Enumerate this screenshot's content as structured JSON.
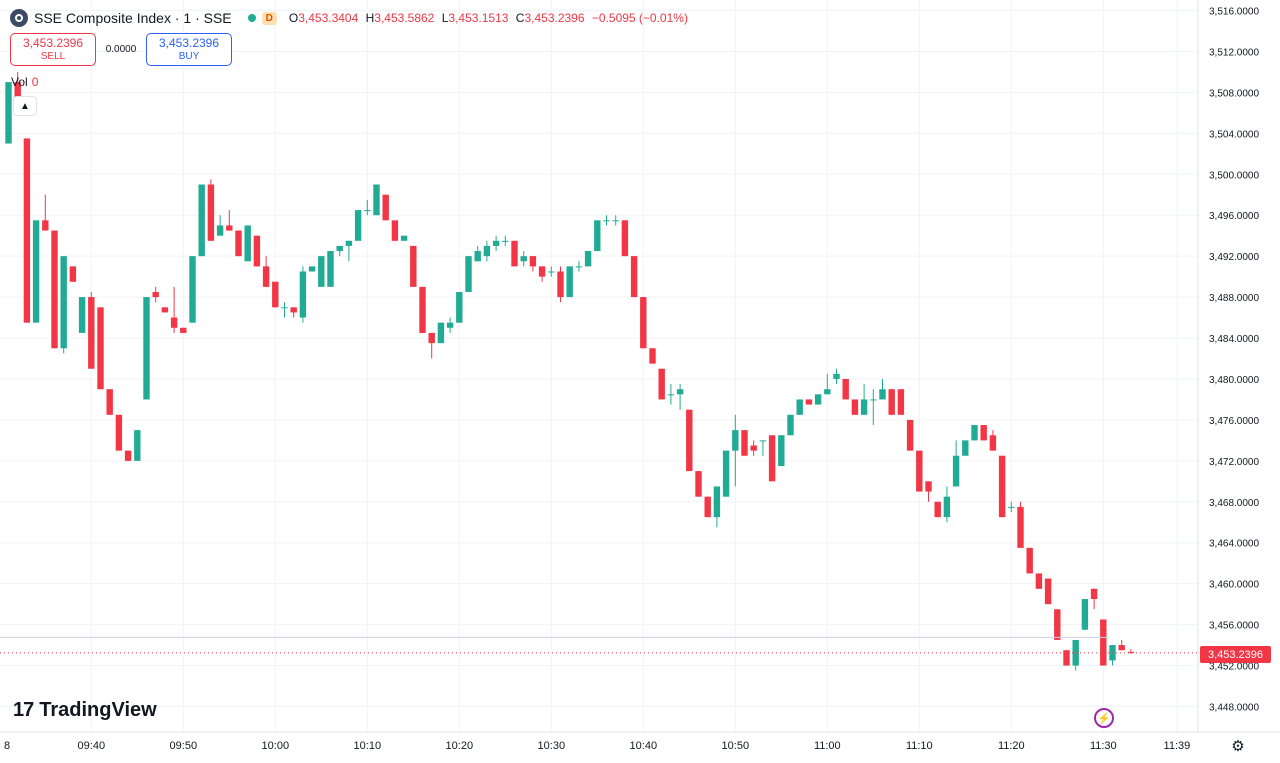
{
  "header": {
    "title": "SSE Composite Index · 1 · SSE",
    "badge": "D",
    "ohlc": {
      "o_label": "O",
      "o": "3,453.3404",
      "h_label": "H",
      "h": "3,453.5862",
      "l_label": "L",
      "l": "3,453.1513",
      "c_label": "C",
      "c": "3,453.2396",
      "change": "−0.5095 (−0.01%)"
    }
  },
  "trade": {
    "sell_price": "3,453.2396",
    "sell_label": "SELL",
    "spread": "0.0000",
    "buy_price": "3,453.2396",
    "buy_label": "BUY"
  },
  "volume": {
    "label": "Vol",
    "value": "0"
  },
  "brand": {
    "name": "TradingView",
    "mark": "17"
  },
  "colors": {
    "up": "#22ab94",
    "down": "#f23645",
    "grid": "#f0f3fa",
    "price_line": "#f23645",
    "accent": "#2962ff"
  },
  "icons": {
    "symbol": "sse-logo-icon",
    "collapse": "chevron-up-icon",
    "flash": "lightning-icon",
    "settings": "gear-icon"
  },
  "price_axis": {
    "ticks": [
      "3,516.0000",
      "3,512.0000",
      "3,508.0000",
      "3,504.0000",
      "3,500.0000",
      "3,496.0000",
      "3,492.0000",
      "3,488.0000",
      "3,484.0000",
      "3,480.0000",
      "3,476.0000",
      "3,472.0000",
      "3,468.0000",
      "3,464.0000",
      "3,460.0000",
      "3,456.0000",
      "3,452.0000",
      "3,448.0000"
    ],
    "current_price_label": "3,453.2396"
  },
  "chart_data": {
    "type": "candlestick",
    "title": "SSE Composite Index · 1 · SSE",
    "interval": "1 minute",
    "ylim": [
      3446.5,
      3517
    ],
    "grid": true,
    "x_tick_labels": [
      "8",
      "09:40",
      "09:50",
      "10:00",
      "10:10",
      "10:20",
      "10:30",
      "10:40",
      "10:50",
      "11:00",
      "11:10",
      "11:20",
      "11:30",
      "11:39"
    ],
    "x_tick_index": [
      -0.5,
      9,
      19,
      29,
      39,
      49,
      59,
      69,
      79,
      89,
      99,
      109,
      119,
      127
    ],
    "current_price": 3453.2396,
    "candles": [
      [
        3503,
        3509,
        3503,
        3509
      ],
      [
        3509,
        3510,
        3506,
        3506.5
      ],
      [
        3503.5,
        3503.5,
        3485.5,
        3485.5
      ],
      [
        3485.5,
        3495.5,
        3485.5,
        3495.5
      ],
      [
        3495.5,
        3498,
        3494.5,
        3494.5
      ],
      [
        3494.5,
        3494.5,
        3483,
        3483
      ],
      [
        3483,
        3492,
        3482.5,
        3492
      ],
      [
        3491,
        3491,
        3489.5,
        3489.5
      ],
      [
        3484.5,
        3488,
        3484.5,
        3488
      ],
      [
        3488,
        3488.5,
        3481,
        3481
      ],
      [
        3487,
        3487,
        3479,
        3479
      ],
      [
        3479,
        3479,
        3476.5,
        3476.5
      ],
      [
        3476.5,
        3476.5,
        3473,
        3473
      ],
      [
        3473,
        3473,
        3472,
        3472
      ],
      [
        3472,
        3475,
        3472,
        3475
      ],
      [
        3478,
        3488,
        3478,
        3488
      ],
      [
        3488.5,
        3489,
        3487.5,
        3488
      ],
      [
        3487,
        3487,
        3486.5,
        3486.5
      ],
      [
        3486,
        3489,
        3484.5,
        3485
      ],
      [
        3485,
        3485,
        3484.5,
        3484.5
      ],
      [
        3485.5,
        3492,
        3485.5,
        3492
      ],
      [
        3492,
        3499,
        3492,
        3499
      ],
      [
        3499,
        3499.5,
        3493.5,
        3493.5
      ],
      [
        3494,
        3496,
        3494,
        3495
      ],
      [
        3495,
        3496.5,
        3494.5,
        3494.5
      ],
      [
        3494.5,
        3494.5,
        3492,
        3492
      ],
      [
        3491.5,
        3495,
        3491.5,
        3495
      ],
      [
        3494,
        3494,
        3491,
        3491
      ],
      [
        3491,
        3492,
        3489,
        3489
      ],
      [
        3489.5,
        3489.5,
        3487,
        3487
      ],
      [
        3487,
        3487.5,
        3486,
        3487
      ],
      [
        3487,
        3487,
        3486,
        3486.5
      ],
      [
        3486,
        3491,
        3485.5,
        3490.5
      ],
      [
        3490.5,
        3491,
        3490.5,
        3491
      ],
      [
        3489,
        3492,
        3489,
        3492
      ],
      [
        3489,
        3492.5,
        3489,
        3492.5
      ],
      [
        3492.5,
        3493,
        3492,
        3493
      ],
      [
        3493,
        3493.5,
        3491.5,
        3493.5
      ],
      [
        3493.5,
        3496.5,
        3493.5,
        3496.5
      ],
      [
        3496.5,
        3497.5,
        3496,
        3496.5
      ],
      [
        3496,
        3499,
        3496,
        3499
      ],
      [
        3498,
        3498,
        3495.5,
        3495.5
      ],
      [
        3495.5,
        3495.5,
        3493.5,
        3493.5
      ],
      [
        3493.5,
        3494,
        3493.5,
        3494
      ],
      [
        3493,
        3493,
        3489,
        3489
      ],
      [
        3489,
        3489,
        3484.5,
        3484.5
      ],
      [
        3484.5,
        3484.5,
        3482,
        3483.5
      ],
      [
        3483.5,
        3485.5,
        3483.5,
        3485.5
      ],
      [
        3485,
        3486,
        3484.5,
        3485.5
      ],
      [
        3485.5,
        3488.5,
        3485.5,
        3488.5
      ],
      [
        3488.5,
        3492,
        3488.5,
        3492
      ],
      [
        3491.5,
        3493,
        3491.5,
        3492.5
      ],
      [
        3492,
        3493.5,
        3491.5,
        3493
      ],
      [
        3493,
        3494,
        3492.5,
        3493.5
      ],
      [
        3493.5,
        3494,
        3493,
        3493.5
      ],
      [
        3493.5,
        3493.5,
        3491,
        3491
      ],
      [
        3491.5,
        3492.5,
        3491,
        3492
      ],
      [
        3492,
        3492,
        3490.5,
        3491
      ],
      [
        3491,
        3491,
        3489.5,
        3490
      ],
      [
        3490.5,
        3491,
        3490,
        3490.5
      ],
      [
        3490.5,
        3491,
        3487.5,
        3488
      ],
      [
        3488,
        3491,
        3488,
        3491
      ],
      [
        3491,
        3491.5,
        3490.5,
        3491
      ],
      [
        3491,
        3492.5,
        3491,
        3492.5
      ],
      [
        3492.5,
        3495.5,
        3492.5,
        3495.5
      ],
      [
        3495.5,
        3496,
        3495,
        3495.5
      ],
      [
        3495.5,
        3496,
        3495,
        3495.5
      ],
      [
        3495.5,
        3495.5,
        3492,
        3492
      ],
      [
        3492,
        3492,
        3488,
        3488
      ],
      [
        3488,
        3488,
        3483,
        3483
      ],
      [
        3483,
        3483,
        3481.5,
        3481.5
      ],
      [
        3481,
        3481,
        3478,
        3478
      ],
      [
        3478.5,
        3479.5,
        3477.5,
        3478.5
      ],
      [
        3478.5,
        3479.5,
        3477,
        3479
      ],
      [
        3477,
        3477,
        3471,
        3471
      ],
      [
        3471,
        3471,
        3468.5,
        3468.5
      ],
      [
        3468.5,
        3468.5,
        3466.5,
        3466.5
      ],
      [
        3466.5,
        3469.5,
        3465.5,
        3469.5
      ],
      [
        3468.5,
        3473,
        3468.5,
        3473
      ],
      [
        3473,
        3476.5,
        3469.5,
        3475
      ],
      [
        3475,
        3475,
        3472.5,
        3472.5
      ],
      [
        3473.5,
        3474,
        3472.5,
        3473
      ],
      [
        3474,
        3474,
        3472.5,
        3474
      ],
      [
        3474.5,
        3474.5,
        3470,
        3470
      ],
      [
        3471.5,
        3474.5,
        3471.5,
        3474.5
      ],
      [
        3474.5,
        3476.5,
        3474.5,
        3476.5
      ],
      [
        3476.5,
        3478,
        3476.5,
        3478
      ],
      [
        3478,
        3478,
        3477.5,
        3477.5
      ],
      [
        3477.5,
        3478.5,
        3477.5,
        3478.5
      ],
      [
        3478.5,
        3480.5,
        3478.5,
        3479
      ],
      [
        3480,
        3481,
        3479.5,
        3480.5
      ],
      [
        3480,
        3480,
        3478,
        3478
      ],
      [
        3478,
        3478,
        3476.5,
        3476.5
      ],
      [
        3476.5,
        3479.5,
        3476.5,
        3478
      ],
      [
        3478,
        3479,
        3475.5,
        3478
      ],
      [
        3478,
        3480,
        3478,
        3479
      ],
      [
        3479,
        3479,
        3476.5,
        3476.5
      ],
      [
        3479,
        3479,
        3476.5,
        3476.5
      ],
      [
        3476,
        3476,
        3473,
        3473
      ],
      [
        3473,
        3473,
        3469,
        3469
      ],
      [
        3470,
        3470,
        3468,
        3469
      ],
      [
        3468,
        3468,
        3466.5,
        3466.5
      ],
      [
        3466.5,
        3469.5,
        3466,
        3468.5
      ],
      [
        3469.5,
        3474,
        3469.5,
        3472.5
      ],
      [
        3472.5,
        3474,
        3472.5,
        3474
      ],
      [
        3474,
        3475.5,
        3474,
        3475.5
      ],
      [
        3475.5,
        3475.5,
        3474,
        3474
      ],
      [
        3474.5,
        3475,
        3473,
        3473
      ],
      [
        3472.5,
        3472.5,
        3466.5,
        3466.5
      ],
      [
        3467.5,
        3468,
        3467,
        3467.5
      ],
      [
        3467.5,
        3468,
        3463.5,
        3463.5
      ],
      [
        3463.5,
        3463.5,
        3461,
        3461
      ],
      [
        3461,
        3461,
        3459.5,
        3459.5
      ],
      [
        3460.5,
        3460.5,
        3458,
        3458
      ],
      [
        3457.5,
        3457.5,
        3454.5,
        3454.5
      ],
      [
        3453.5,
        3453.5,
        3452,
        3452
      ],
      [
        3452,
        3454.5,
        3451.5,
        3454.5
      ],
      [
        3455.5,
        3458.5,
        3455.5,
        3458.5
      ],
      [
        3459.5,
        3459.5,
        3457.5,
        3458.5
      ],
      [
        3456.5,
        3456.5,
        3452,
        3452
      ],
      [
        3452.5,
        3454,
        3452,
        3454
      ],
      [
        3454,
        3454.5,
        3453.5,
        3453.5
      ],
      [
        3453.3404,
        3453.5862,
        3453.1513,
        3453.2396
      ]
    ]
  }
}
